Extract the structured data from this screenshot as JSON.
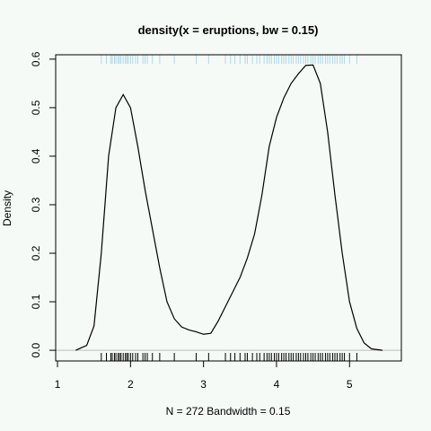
{
  "chart_data": {
    "type": "line",
    "title": "density(x = eruptions, bw = 0.15)",
    "x_label": "N = 272   Bandwidth = 0.15",
    "y_label": "Density",
    "x": [
      1.25,
      1.4,
      1.5,
      1.6,
      1.7,
      1.8,
      1.9,
      2.0,
      2.1,
      2.2,
      2.3,
      2.4,
      2.5,
      2.6,
      2.7,
      2.8,
      2.9,
      3.0,
      3.1,
      3.2,
      3.3,
      3.4,
      3.5,
      3.6,
      3.7,
      3.8,
      3.9,
      4.0,
      4.1,
      4.2,
      4.3,
      4.4,
      4.5,
      4.6,
      4.7,
      4.8,
      4.9,
      5.0,
      5.1,
      5.2,
      5.3,
      5.45
    ],
    "values": [
      0.0,
      0.01,
      0.05,
      0.2,
      0.4,
      0.5,
      0.527,
      0.5,
      0.42,
      0.33,
      0.25,
      0.17,
      0.1,
      0.065,
      0.048,
      0.042,
      0.038,
      0.033,
      0.035,
      0.06,
      0.09,
      0.12,
      0.15,
      0.19,
      0.24,
      0.32,
      0.42,
      0.48,
      0.52,
      0.55,
      0.57,
      0.587,
      0.588,
      0.55,
      0.45,
      0.32,
      0.2,
      0.1,
      0.045,
      0.015,
      0.003,
      0.0
    ],
    "color": "#000000",
    "rug": [
      1.6,
      1.67,
      1.73,
      1.75,
      1.78,
      1.8,
      1.83,
      1.85,
      1.87,
      1.9,
      1.93,
      1.95,
      1.97,
      2.0,
      2.03,
      2.07,
      2.1,
      2.17,
      2.2,
      2.23,
      2.3,
      2.4,
      2.6,
      2.9,
      3.07,
      3.3,
      3.37,
      3.43,
      3.5,
      3.57,
      3.6,
      3.67,
      3.73,
      3.77,
      3.83,
      3.87,
      3.9,
      3.93,
      3.97,
      4.0,
      4.03,
      4.07,
      4.1,
      4.13,
      4.17,
      4.2,
      4.23,
      4.27,
      4.3,
      4.33,
      4.37,
      4.4,
      4.43,
      4.47,
      4.5,
      4.53,
      4.57,
      4.6,
      4.63,
      4.67,
      4.7,
      4.73,
      4.77,
      4.8,
      4.83,
      4.87,
      4.9,
      4.93,
      5.0,
      5.1
    ],
    "rug_color": "#000000",
    "top_rug_color": "#add8e6",
    "xlim": [
      0.975,
      5.71
    ],
    "ylim": [
      -0.022,
      0.609
    ],
    "xticks": [
      1,
      2,
      3,
      4,
      5
    ],
    "yticks": [
      {
        "value": 0,
        "label": "0.0"
      },
      0.1,
      0.2,
      0.3,
      0.4,
      0.5,
      0.6
    ]
  }
}
